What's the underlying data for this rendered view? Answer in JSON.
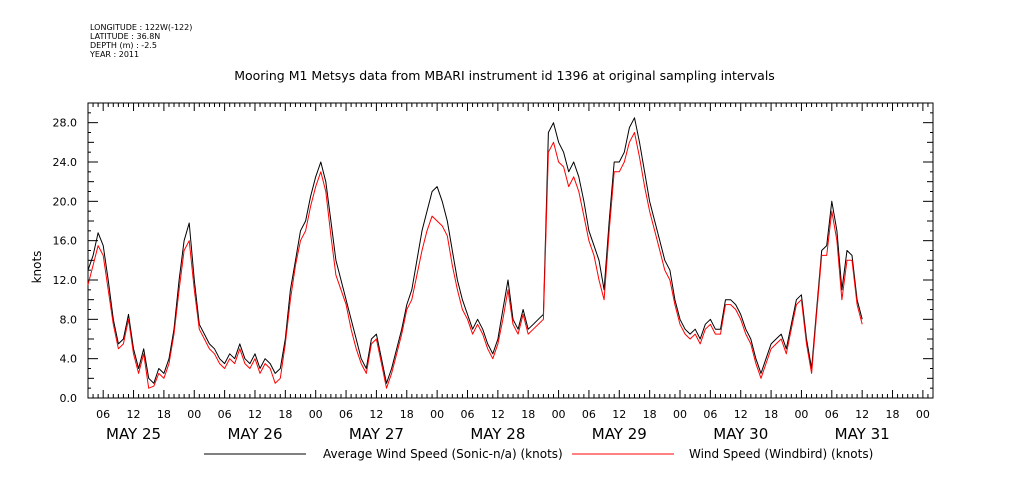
{
  "meta": [
    "LONGITUDE : 122W(-122)",
    "LATITUDE : 36.8N",
    "DEPTH (m) : -2.5",
    "YEAR : 2011"
  ],
  "chart_data": {
    "type": "line",
    "title": "Mooring M1 Metsys data from MBARI instrument id 1396 at original sampling intervals",
    "ylabel": "knots",
    "xlabel": "",
    "ylim": [
      0,
      30
    ],
    "xlim": [
      3,
      170
    ],
    "x_unit": "hours since May 25 00:00, 2011",
    "yticks": [
      0,
      4,
      8,
      12,
      16,
      20,
      24,
      28
    ],
    "ytick_labels": [
      "0.0",
      "4.0",
      "8.0",
      "12.0",
      "16.0",
      "20.0",
      "24.0",
      "28.0"
    ],
    "xticks": [
      6,
      12,
      18,
      24,
      30,
      36,
      42,
      48,
      54,
      60,
      66,
      72,
      78,
      84,
      90,
      96,
      102,
      108,
      114,
      120,
      126,
      132,
      138,
      144,
      150,
      156,
      162,
      168
    ],
    "xtick_labels": [
      "06",
      "12",
      "18",
      "00",
      "06",
      "12",
      "18",
      "00",
      "06",
      "12",
      "18",
      "00",
      "06",
      "12",
      "18",
      "00",
      "06",
      "12",
      "18",
      "00",
      "06",
      "12",
      "18",
      "00",
      "06",
      "12",
      "18",
      "00"
    ],
    "day_labels": [
      {
        "x": 12,
        "label": "MAY 25"
      },
      {
        "x": 36,
        "label": "MAY 26"
      },
      {
        "x": 60,
        "label": "MAY 27"
      },
      {
        "x": 84,
        "label": "MAY 28"
      },
      {
        "x": 108,
        "label": "MAY 29"
      },
      {
        "x": 132,
        "label": "MAY 30"
      },
      {
        "x": 156,
        "label": "MAY 31"
      }
    ],
    "grid": false,
    "legend": "bottom",
    "series": [
      {
        "name": "Average Wind Speed (Sonic-n/a) (knots)",
        "color": "#000000",
        "points": [
          [
            3,
            13
          ],
          [
            4,
            14.5
          ],
          [
            5,
            16.8
          ],
          [
            6,
            15.5
          ],
          [
            7,
            12
          ],
          [
            8,
            8
          ],
          [
            9,
            5.5
          ],
          [
            10,
            6
          ],
          [
            11,
            8.5
          ],
          [
            12,
            5
          ],
          [
            13,
            3
          ],
          [
            14,
            5
          ],
          [
            15,
            2
          ],
          [
            16,
            1.5
          ],
          [
            17,
            3
          ],
          [
            18,
            2.5
          ],
          [
            19,
            4
          ],
          [
            20,
            7
          ],
          [
            21,
            12
          ],
          [
            22,
            16
          ],
          [
            23,
            17.8
          ],
          [
            24,
            12
          ],
          [
            25,
            7.5
          ],
          [
            26,
            6.5
          ],
          [
            27,
            5.5
          ],
          [
            28,
            5
          ],
          [
            29,
            4
          ],
          [
            30,
            3.5
          ],
          [
            31,
            4.5
          ],
          [
            32,
            4
          ],
          [
            33,
            5.5
          ],
          [
            34,
            4
          ],
          [
            35,
            3.5
          ],
          [
            36,
            4.5
          ],
          [
            37,
            3
          ],
          [
            38,
            4
          ],
          [
            39,
            3.5
          ],
          [
            40,
            2.5
          ],
          [
            41,
            3
          ],
          [
            42,
            6
          ],
          [
            43,
            11
          ],
          [
            44,
            14
          ],
          [
            45,
            17
          ],
          [
            46,
            18
          ],
          [
            47,
            20.5
          ],
          [
            48,
            22.5
          ],
          [
            49,
            24
          ],
          [
            50,
            22
          ],
          [
            51,
            18
          ],
          [
            52,
            14
          ],
          [
            53,
            12
          ],
          [
            54,
            10
          ],
          [
            55,
            8
          ],
          [
            56,
            6
          ],
          [
            57,
            4
          ],
          [
            58,
            3
          ],
          [
            59,
            6
          ],
          [
            60,
            6.5
          ],
          [
            61,
            4
          ],
          [
            62,
            1.5
          ],
          [
            63,
            3
          ],
          [
            64,
            5
          ],
          [
            65,
            7
          ],
          [
            66,
            9.5
          ],
          [
            67,
            11
          ],
          [
            68,
            14
          ],
          [
            69,
            17
          ],
          [
            70,
            19
          ],
          [
            71,
            21
          ],
          [
            72,
            21.5
          ],
          [
            73,
            20
          ],
          [
            74,
            18
          ],
          [
            75,
            15
          ],
          [
            76,
            12
          ],
          [
            77,
            10
          ],
          [
            78,
            8.5
          ],
          [
            79,
            7
          ],
          [
            80,
            8
          ],
          [
            81,
            7
          ],
          [
            82,
            5.5
          ],
          [
            83,
            4.5
          ],
          [
            84,
            6
          ],
          [
            85,
            9
          ],
          [
            86,
            12
          ],
          [
            87,
            8
          ],
          [
            88,
            7
          ],
          [
            89,
            9
          ],
          [
            90,
            7
          ],
          [
            91,
            7.5
          ],
          [
            92,
            8
          ],
          [
            93,
            8.5
          ],
          [
            94,
            27
          ],
          [
            95,
            28
          ],
          [
            96,
            26
          ],
          [
            97,
            25
          ],
          [
            98,
            23
          ],
          [
            99,
            24
          ],
          [
            100,
            22.5
          ],
          [
            101,
            20
          ],
          [
            102,
            17
          ],
          [
            103,
            15.5
          ],
          [
            104,
            14
          ],
          [
            105,
            11
          ],
          [
            106,
            18
          ],
          [
            107,
            24
          ],
          [
            108,
            24
          ],
          [
            109,
            25
          ],
          [
            110,
            27.5
          ],
          [
            111,
            28.5
          ],
          [
            112,
            26
          ],
          [
            113,
            23
          ],
          [
            114,
            20
          ],
          [
            115,
            18
          ],
          [
            116,
            16
          ],
          [
            117,
            14
          ],
          [
            118,
            13
          ],
          [
            119,
            10
          ],
          [
            120,
            8
          ],
          [
            121,
            7
          ],
          [
            122,
            6.5
          ],
          [
            123,
            7
          ],
          [
            124,
            6
          ],
          [
            125,
            7.5
          ],
          [
            126,
            8
          ],
          [
            127,
            7
          ],
          [
            128,
            7
          ],
          [
            129,
            10
          ],
          [
            130,
            10
          ],
          [
            131,
            9.5
          ],
          [
            132,
            8.5
          ],
          [
            133,
            7
          ],
          [
            134,
            6
          ],
          [
            135,
            4
          ],
          [
            136,
            2.5
          ],
          [
            137,
            4
          ],
          [
            138,
            5.5
          ],
          [
            139,
            6
          ],
          [
            140,
            6.5
          ],
          [
            141,
            5
          ],
          [
            142,
            7.5
          ],
          [
            143,
            10
          ],
          [
            144,
            10.5
          ],
          [
            145,
            6
          ],
          [
            146,
            3
          ],
          [
            147,
            9
          ],
          [
            148,
            15
          ],
          [
            149,
            15.5
          ],
          [
            150,
            20
          ],
          [
            151,
            17
          ],
          [
            152,
            11
          ],
          [
            153,
            15
          ],
          [
            154,
            14.5
          ],
          [
            155,
            10
          ],
          [
            156,
            8
          ]
        ]
      },
      {
        "name": "Wind Speed (Windbird) (knots)",
        "color": "#ff0000",
        "points": [
          [
            3,
            11.5
          ],
          [
            4,
            13.5
          ],
          [
            5,
            15.5
          ],
          [
            6,
            14.5
          ],
          [
            7,
            11
          ],
          [
            8,
            7.5
          ],
          [
            9,
            5
          ],
          [
            10,
            5.5
          ],
          [
            11,
            8
          ],
          [
            12,
            4.5
          ],
          [
            13,
            2.5
          ],
          [
            14,
            4.5
          ],
          [
            15,
            1
          ],
          [
            16,
            1.2
          ],
          [
            17,
            2.5
          ],
          [
            18,
            2
          ],
          [
            19,
            3.5
          ],
          [
            20,
            6.5
          ],
          [
            21,
            11
          ],
          [
            22,
            15
          ],
          [
            23,
            16
          ],
          [
            24,
            11
          ],
          [
            25,
            7
          ],
          [
            26,
            6
          ],
          [
            27,
            5
          ],
          [
            28,
            4.5
          ],
          [
            29,
            3.5
          ],
          [
            30,
            3
          ],
          [
            31,
            4
          ],
          [
            32,
            3.5
          ],
          [
            33,
            5
          ],
          [
            34,
            3.5
          ],
          [
            35,
            3
          ],
          [
            36,
            4
          ],
          [
            37,
            2.5
          ],
          [
            38,
            3.5
          ],
          [
            39,
            3
          ],
          [
            40,
            1.5
          ],
          [
            41,
            2
          ],
          [
            42,
            5.5
          ],
          [
            43,
            10
          ],
          [
            44,
            13.5
          ],
          [
            45,
            16
          ],
          [
            46,
            17
          ],
          [
            47,
            19.5
          ],
          [
            48,
            21.5
          ],
          [
            49,
            23
          ],
          [
            50,
            21
          ],
          [
            51,
            16.5
          ],
          [
            52,
            12.5
          ],
          [
            53,
            11
          ],
          [
            54,
            9.5
          ],
          [
            55,
            7
          ],
          [
            56,
            5
          ],
          [
            57,
            3.5
          ],
          [
            58,
            2.5
          ],
          [
            59,
            5.5
          ],
          [
            60,
            6
          ],
          [
            61,
            3.5
          ],
          [
            62,
            1
          ],
          [
            63,
            2.5
          ],
          [
            64,
            4.5
          ],
          [
            65,
            6.5
          ],
          [
            66,
            9
          ],
          [
            67,
            10
          ],
          [
            68,
            12.5
          ],
          [
            69,
            15
          ],
          [
            70,
            17
          ],
          [
            71,
            18.5
          ],
          [
            72,
            18
          ],
          [
            73,
            17.5
          ],
          [
            74,
            16.5
          ],
          [
            75,
            13.5
          ],
          [
            76,
            11
          ],
          [
            77,
            9
          ],
          [
            78,
            8
          ],
          [
            79,
            6.5
          ],
          [
            80,
            7.5
          ],
          [
            81,
            6.5
          ],
          [
            82,
            5
          ],
          [
            83,
            4
          ],
          [
            84,
            5.5
          ],
          [
            85,
            8
          ],
          [
            86,
            11
          ],
          [
            87,
            7.5
          ],
          [
            88,
            6.5
          ],
          [
            89,
            8.5
          ],
          [
            90,
            6.5
          ],
          [
            91,
            7
          ],
          [
            92,
            7.5
          ],
          [
            93,
            8
          ],
          [
            94,
            25
          ],
          [
            95,
            26
          ],
          [
            96,
            24
          ],
          [
            97,
            23.5
          ],
          [
            98,
            21.5
          ],
          [
            99,
            22.5
          ],
          [
            100,
            21
          ],
          [
            101,
            18.5
          ],
          [
            102,
            16
          ],
          [
            103,
            14.5
          ],
          [
            104,
            12
          ],
          [
            105,
            10
          ],
          [
            106,
            17
          ],
          [
            107,
            23
          ],
          [
            108,
            23
          ],
          [
            109,
            24
          ],
          [
            110,
            26
          ],
          [
            111,
            27
          ],
          [
            112,
            24.5
          ],
          [
            113,
            21.5
          ],
          [
            114,
            19
          ],
          [
            115,
            17
          ],
          [
            116,
            15
          ],
          [
            117,
            13
          ],
          [
            118,
            12
          ],
          [
            119,
            9.5
          ],
          [
            120,
            7.5
          ],
          [
            121,
            6.5
          ],
          [
            122,
            6
          ],
          [
            123,
            6.5
          ],
          [
            124,
            5.5
          ],
          [
            125,
            7
          ],
          [
            126,
            7.5
          ],
          [
            127,
            6.5
          ],
          [
            128,
            6.5
          ],
          [
            129,
            9.5
          ],
          [
            130,
            9.5
          ],
          [
            131,
            9
          ],
          [
            132,
            8
          ],
          [
            133,
            6.5
          ],
          [
            134,
            5.5
          ],
          [
            135,
            3.5
          ],
          [
            136,
            2
          ],
          [
            137,
            3.5
          ],
          [
            138,
            5
          ],
          [
            139,
            5.5
          ],
          [
            140,
            6
          ],
          [
            141,
            4.5
          ],
          [
            142,
            7
          ],
          [
            143,
            9.5
          ],
          [
            144,
            10
          ],
          [
            145,
            5.5
          ],
          [
            146,
            2.5
          ],
          [
            147,
            8.5
          ],
          [
            148,
            14.5
          ],
          [
            149,
            14.5
          ],
          [
            150,
            19
          ],
          [
            151,
            16
          ],
          [
            152,
            10
          ],
          [
            153,
            14
          ],
          [
            154,
            14
          ],
          [
            155,
            9.5
          ],
          [
            156,
            7.5
          ]
        ]
      }
    ]
  }
}
